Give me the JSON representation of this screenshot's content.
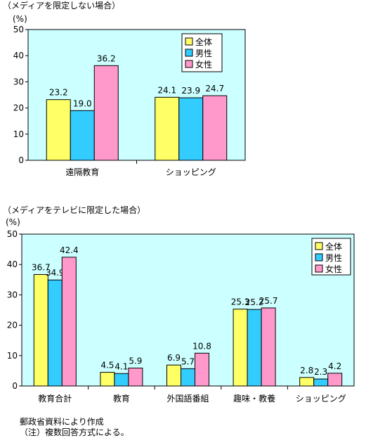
{
  "colors": {
    "plot_bg": "#CCFFFF",
    "all": "#FFFF66",
    "male": "#33CCFF",
    "female": "#FF99CC"
  },
  "chart_data": [
    {
      "type": "bar",
      "subtitle": "（メディアを限定しない場合）",
      "ylabel": "(%)",
      "ylim": [
        0,
        50
      ],
      "yticks": [
        0,
        10,
        20,
        30,
        40,
        50
      ],
      "categories": [
        "遠隔教育",
        "ショッピング"
      ],
      "series": [
        {
          "name": "全体",
          "values": [
            23.2,
            24.1
          ]
        },
        {
          "name": "男性",
          "values": [
            19.0,
            23.9
          ]
        },
        {
          "name": "女性",
          "values": [
            36.2,
            24.7
          ]
        }
      ],
      "grid": false,
      "legend": "top-right"
    },
    {
      "type": "bar",
      "subtitle": "（メディアをテレビに限定した場合）",
      "ylabel": "(%)",
      "ylim": [
        0,
        50
      ],
      "yticks": [
        0,
        10,
        20,
        30,
        40,
        50
      ],
      "categories": [
        "教育合計",
        "教育",
        "外国語番組",
        "趣味・教養",
        "ショッピング"
      ],
      "series": [
        {
          "name": "全体",
          "values": [
            36.7,
            4.5,
            6.9,
            25.3,
            2.8
          ]
        },
        {
          "name": "男性",
          "values": [
            34.9,
            4.1,
            5.7,
            25.2,
            2.3
          ]
        },
        {
          "name": "女性",
          "values": [
            42.4,
            5.9,
            10.8,
            25.7,
            4.2
          ]
        }
      ],
      "grid": false,
      "legend": "top-right"
    }
  ],
  "notes": {
    "source": "郵政省資料により作成",
    "footnote": "（注）複数回答方式による。"
  }
}
